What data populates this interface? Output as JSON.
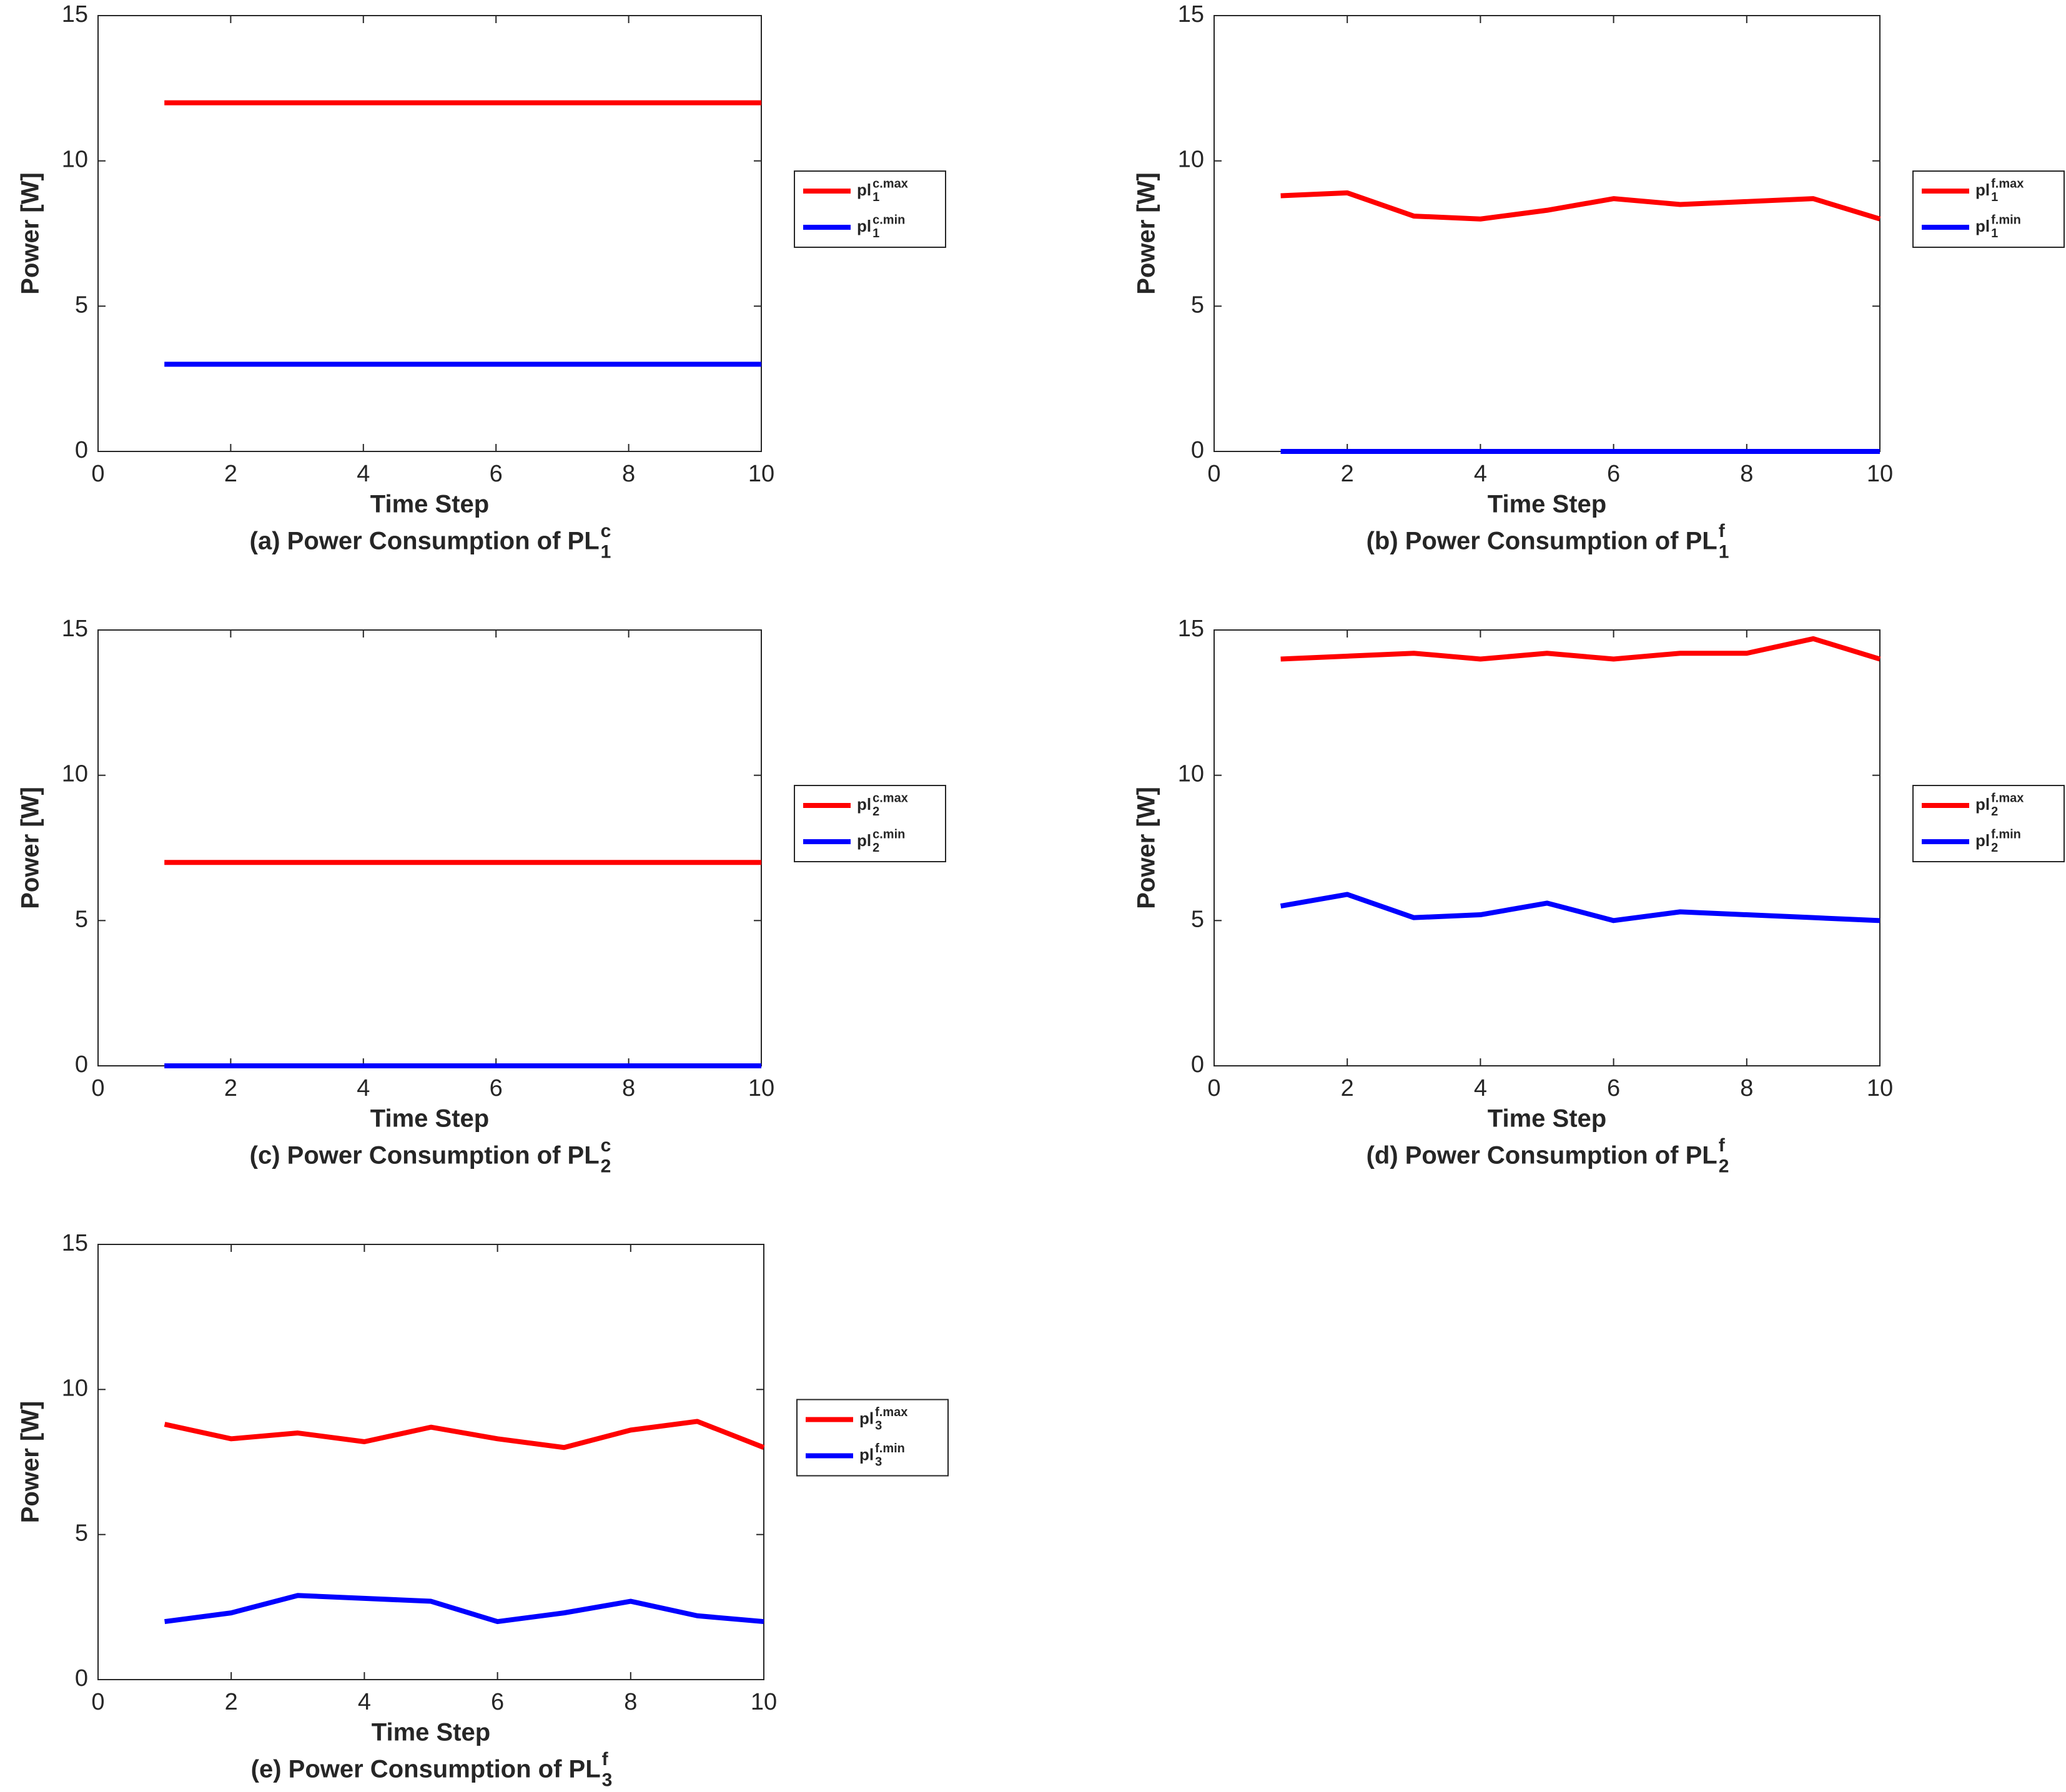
{
  "chart_data": [
    {
      "type": "line",
      "title": {
        "text": "(a) Power Consumption of PL",
        "sup": "c",
        "sub": "1"
      },
      "xlabel": "Time Step",
      "ylabel": "Power [W]",
      "legend": "outside-right",
      "x": [
        1,
        2,
        3,
        4,
        5,
        6,
        7,
        8,
        9,
        10
      ],
      "xlim": [
        0,
        10
      ],
      "xticks": [
        0,
        2,
        4,
        6,
        8,
        10
      ],
      "ylim": [
        0,
        15
      ],
      "yticks": [
        0,
        5,
        10,
        15
      ],
      "series": [
        {
          "name": {
            "text": "pl",
            "sup": "c.max",
            "sub": "1"
          },
          "color": "#ff0000",
          "values": [
            12,
            12,
            12,
            12,
            12,
            12,
            12,
            12,
            12,
            12
          ]
        },
        {
          "name": {
            "text": "pl",
            "sup": "c.min",
            "sub": "1"
          },
          "color": "#0000ff",
          "values": [
            3,
            3,
            3,
            3,
            3,
            3,
            3,
            3,
            3,
            3
          ]
        }
      ]
    },
    {
      "type": "line",
      "title": {
        "text": "(b) Power Consumption of PL",
        "sup": "f",
        "sub": "1"
      },
      "xlabel": "Time Step",
      "ylabel": "Power [W]",
      "legend": "outside-right",
      "x": [
        1,
        2,
        3,
        4,
        5,
        6,
        7,
        8,
        9,
        10
      ],
      "xlim": [
        0,
        10
      ],
      "xticks": [
        0,
        2,
        4,
        6,
        8,
        10
      ],
      "ylim": [
        0,
        15
      ],
      "yticks": [
        0,
        5,
        10,
        15
      ],
      "series": [
        {
          "name": {
            "text": "pl",
            "sup": "f.max",
            "sub": "1"
          },
          "color": "#ff0000",
          "values": [
            8.8,
            8.9,
            8.1,
            8.0,
            8.3,
            8.7,
            8.5,
            8.6,
            8.7,
            8.0
          ]
        },
        {
          "name": {
            "text": "pl",
            "sup": "f.min",
            "sub": "1"
          },
          "color": "#0000ff",
          "values": [
            0,
            0,
            0,
            0,
            0,
            0,
            0,
            0,
            0,
            0
          ]
        }
      ]
    },
    {
      "type": "line",
      "title": {
        "text": "(c) Power Consumption of PL",
        "sup": "c",
        "sub": "2"
      },
      "xlabel": "Time Step",
      "ylabel": "Power [W]",
      "legend": "outside-right",
      "x": [
        1,
        2,
        3,
        4,
        5,
        6,
        7,
        8,
        9,
        10
      ],
      "xlim": [
        0,
        10
      ],
      "xticks": [
        0,
        2,
        4,
        6,
        8,
        10
      ],
      "ylim": [
        0,
        15
      ],
      "yticks": [
        0,
        5,
        10,
        15
      ],
      "series": [
        {
          "name": {
            "text": "pl",
            "sup": "c.max",
            "sub": "2"
          },
          "color": "#ff0000",
          "values": [
            7,
            7,
            7,
            7,
            7,
            7,
            7,
            7,
            7,
            7
          ]
        },
        {
          "name": {
            "text": "pl",
            "sup": "c.min",
            "sub": "2"
          },
          "color": "#0000ff",
          "values": [
            0,
            0,
            0,
            0,
            0,
            0,
            0,
            0,
            0,
            0
          ]
        }
      ]
    },
    {
      "type": "line",
      "title": {
        "text": "(d) Power Consumption of PL",
        "sup": "f",
        "sub": "2"
      },
      "xlabel": "Time Step",
      "ylabel": "Power [W]",
      "legend": "outside-right",
      "x": [
        1,
        2,
        3,
        4,
        5,
        6,
        7,
        8,
        9,
        10
      ],
      "xlim": [
        0,
        10
      ],
      "xticks": [
        0,
        2,
        4,
        6,
        8,
        10
      ],
      "ylim": [
        0,
        15
      ],
      "yticks": [
        0,
        5,
        10,
        15
      ],
      "series": [
        {
          "name": {
            "text": "pl",
            "sup": "f.max",
            "sub": "2"
          },
          "color": "#ff0000",
          "values": [
            14.0,
            14.1,
            14.2,
            14.0,
            14.2,
            14.0,
            14.2,
            14.2,
            14.7,
            14.0
          ]
        },
        {
          "name": {
            "text": "pl",
            "sup": "f.min",
            "sub": "2"
          },
          "color": "#0000ff",
          "values": [
            5.5,
            5.9,
            5.1,
            5.2,
            5.6,
            5.0,
            5.3,
            5.2,
            5.1,
            5.0
          ]
        }
      ]
    },
    {
      "type": "line",
      "title": {
        "text": "(e) Power Consumption of PL",
        "sup": "f",
        "sub": "3"
      },
      "xlabel": "Time Step",
      "ylabel": "Power [W]",
      "legend": "outside-right",
      "x": [
        1,
        2,
        3,
        4,
        5,
        6,
        7,
        8,
        9,
        10
      ],
      "xlim": [
        0,
        10
      ],
      "xticks": [
        0,
        2,
        4,
        6,
        8,
        10
      ],
      "ylim": [
        0,
        15
      ],
      "yticks": [
        0,
        5,
        10,
        15
      ],
      "series": [
        {
          "name": {
            "text": "pl",
            "sup": "f.max",
            "sub": "3"
          },
          "color": "#ff0000",
          "values": [
            8.8,
            8.3,
            8.5,
            8.2,
            8.7,
            8.3,
            8.0,
            8.6,
            8.9,
            8.0
          ]
        },
        {
          "name": {
            "text": "pl",
            "sup": "f.min",
            "sub": "3"
          },
          "color": "#0000ff",
          "values": [
            2.0,
            2.3,
            2.9,
            2.8,
            2.7,
            2.0,
            2.3,
            2.7,
            2.2,
            2.0
          ]
        }
      ]
    }
  ]
}
